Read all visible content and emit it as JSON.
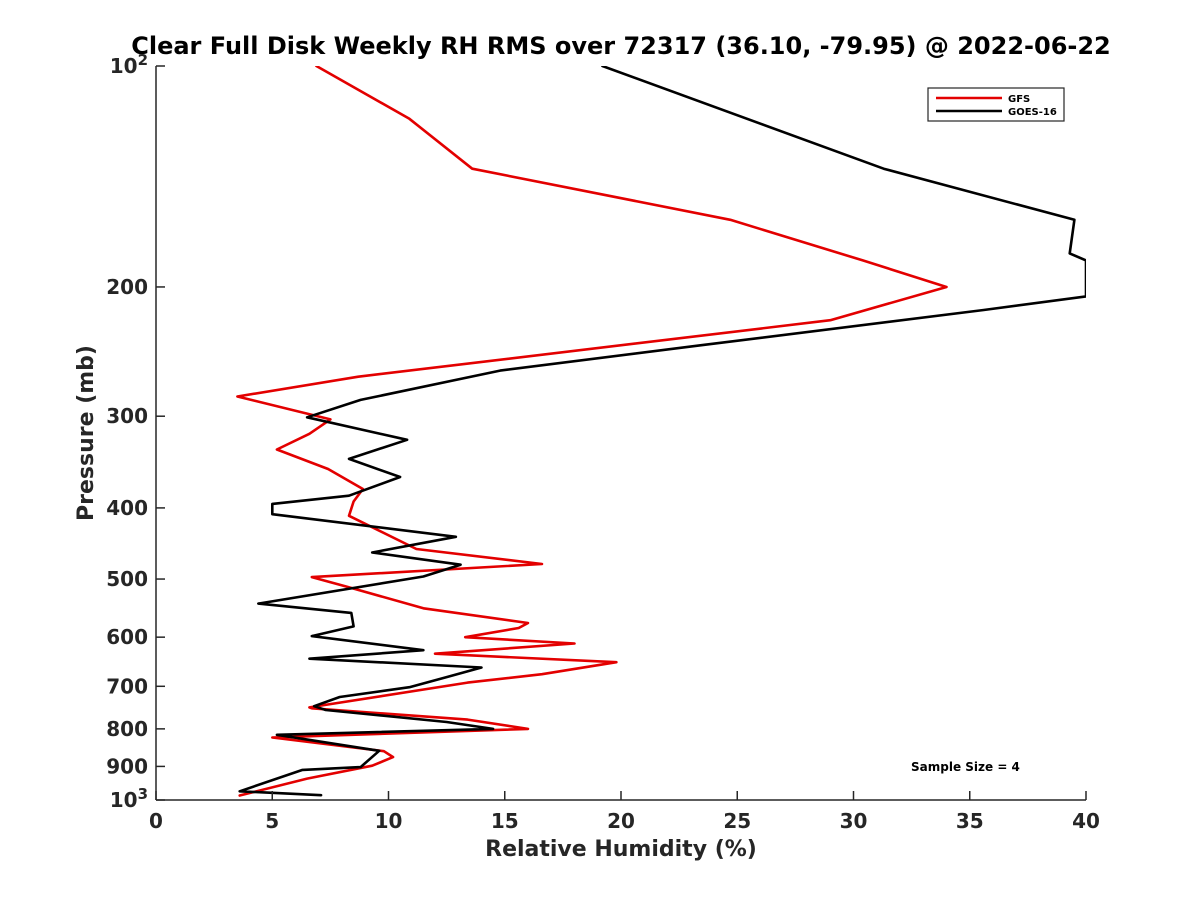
{
  "chart_data": {
    "type": "line",
    "title": "Clear Full Disk Weekly RH RMS over 72317 (36.10, -79.95) @ 2022-06-22",
    "xlabel": "Relative Humidity (%)",
    "ylabel": "Pressure (mb)",
    "xlim": [
      0,
      40
    ],
    "ylim": [
      100,
      1000
    ],
    "yscale": "log",
    "y_reversed": true,
    "x_ticks": [
      "0",
      "5",
      "10",
      "15",
      "20",
      "25",
      "30",
      "35",
      "40"
    ],
    "y_ticks": [
      {
        "value": 100,
        "label": "10",
        "sup": "2"
      },
      {
        "value": 200,
        "label": "200",
        "sup": ""
      },
      {
        "value": 300,
        "label": "300",
        "sup": ""
      },
      {
        "value": 400,
        "label": "400",
        "sup": ""
      },
      {
        "value": 500,
        "label": "500",
        "sup": ""
      },
      {
        "value": 600,
        "label": "600",
        "sup": ""
      },
      {
        "value": 700,
        "label": "700",
        "sup": ""
      },
      {
        "value": 800,
        "label": "800",
        "sup": ""
      },
      {
        "value": 900,
        "label": "900",
        "sup": ""
      },
      {
        "value": 1000,
        "label": "10",
        "sup": "3"
      }
    ],
    "grid": false,
    "legend_position": "top-right",
    "annotation": "Sample Size = 4",
    "series": [
      {
        "name": "GFS",
        "color": "#e30000",
        "points": [
          [
            6.9,
            100
          ],
          [
            10.9,
            118
          ],
          [
            13.6,
            138
          ],
          [
            24.7,
            162
          ],
          [
            30.4,
            184
          ],
          [
            34.0,
            200
          ],
          [
            29.0,
            222
          ],
          [
            8.7,
            265
          ],
          [
            3.5,
            282
          ],
          [
            7.5,
            303
          ],
          [
            6.6,
            317
          ],
          [
            5.2,
            333
          ],
          [
            7.4,
            354
          ],
          [
            8.9,
            377
          ],
          [
            8.5,
            392
          ],
          [
            8.3,
            410
          ],
          [
            11.2,
            455
          ],
          [
            16.6,
            477
          ],
          [
            6.7,
            497
          ],
          [
            8.2,
            512
          ],
          [
            11.5,
            548
          ],
          [
            16.0,
            574
          ],
          [
            15.6,
            583
          ],
          [
            13.3,
            600
          ],
          [
            18.0,
            612
          ],
          [
            12.0,
            632
          ],
          [
            19.8,
            649
          ],
          [
            16.6,
            674
          ],
          [
            13.4,
            692
          ],
          [
            6.6,
            748
          ],
          [
            6.7,
            750
          ],
          [
            13.4,
            777
          ],
          [
            16.0,
            800
          ],
          [
            5.0,
            822
          ],
          [
            9.8,
            858
          ],
          [
            10.2,
            874
          ],
          [
            9.3,
            898
          ],
          [
            6.5,
            935
          ],
          [
            3.6,
            986
          ]
        ]
      },
      {
        "name": "GOES-16",
        "color": "#000000",
        "points": [
          [
            19.2,
            100
          ],
          [
            31.3,
            138
          ],
          [
            39.5,
            162
          ],
          [
            39.3,
            180
          ],
          [
            40.0,
            184
          ],
          [
            40.0,
            206
          ],
          [
            35.6,
            215
          ],
          [
            23.5,
            240
          ],
          [
            14.8,
            260
          ],
          [
            8.8,
            285
          ],
          [
            6.5,
            301
          ],
          [
            10.8,
            323
          ],
          [
            8.3,
            343
          ],
          [
            10.5,
            363
          ],
          [
            8.3,
            385
          ],
          [
            5.0,
            395
          ],
          [
            5.0,
            408
          ],
          [
            12.9,
            438
          ],
          [
            9.3,
            460
          ],
          [
            13.1,
            478
          ],
          [
            11.5,
            496
          ],
          [
            4.4,
            540
          ],
          [
            8.4,
            556
          ],
          [
            8.5,
            580
          ],
          [
            6.7,
            598
          ],
          [
            11.5,
            625
          ],
          [
            6.6,
            642
          ],
          [
            14.0,
            660
          ],
          [
            12.5,
            680
          ],
          [
            10.9,
            702
          ],
          [
            7.9,
            724
          ],
          [
            6.8,
            745
          ],
          [
            7.3,
            754
          ],
          [
            12.5,
            783
          ],
          [
            14.5,
            800
          ],
          [
            5.2,
            815
          ],
          [
            9.6,
            857
          ],
          [
            8.8,
            902
          ],
          [
            6.3,
            910
          ],
          [
            3.6,
            973
          ],
          [
            7.1,
            985
          ]
        ]
      }
    ]
  }
}
